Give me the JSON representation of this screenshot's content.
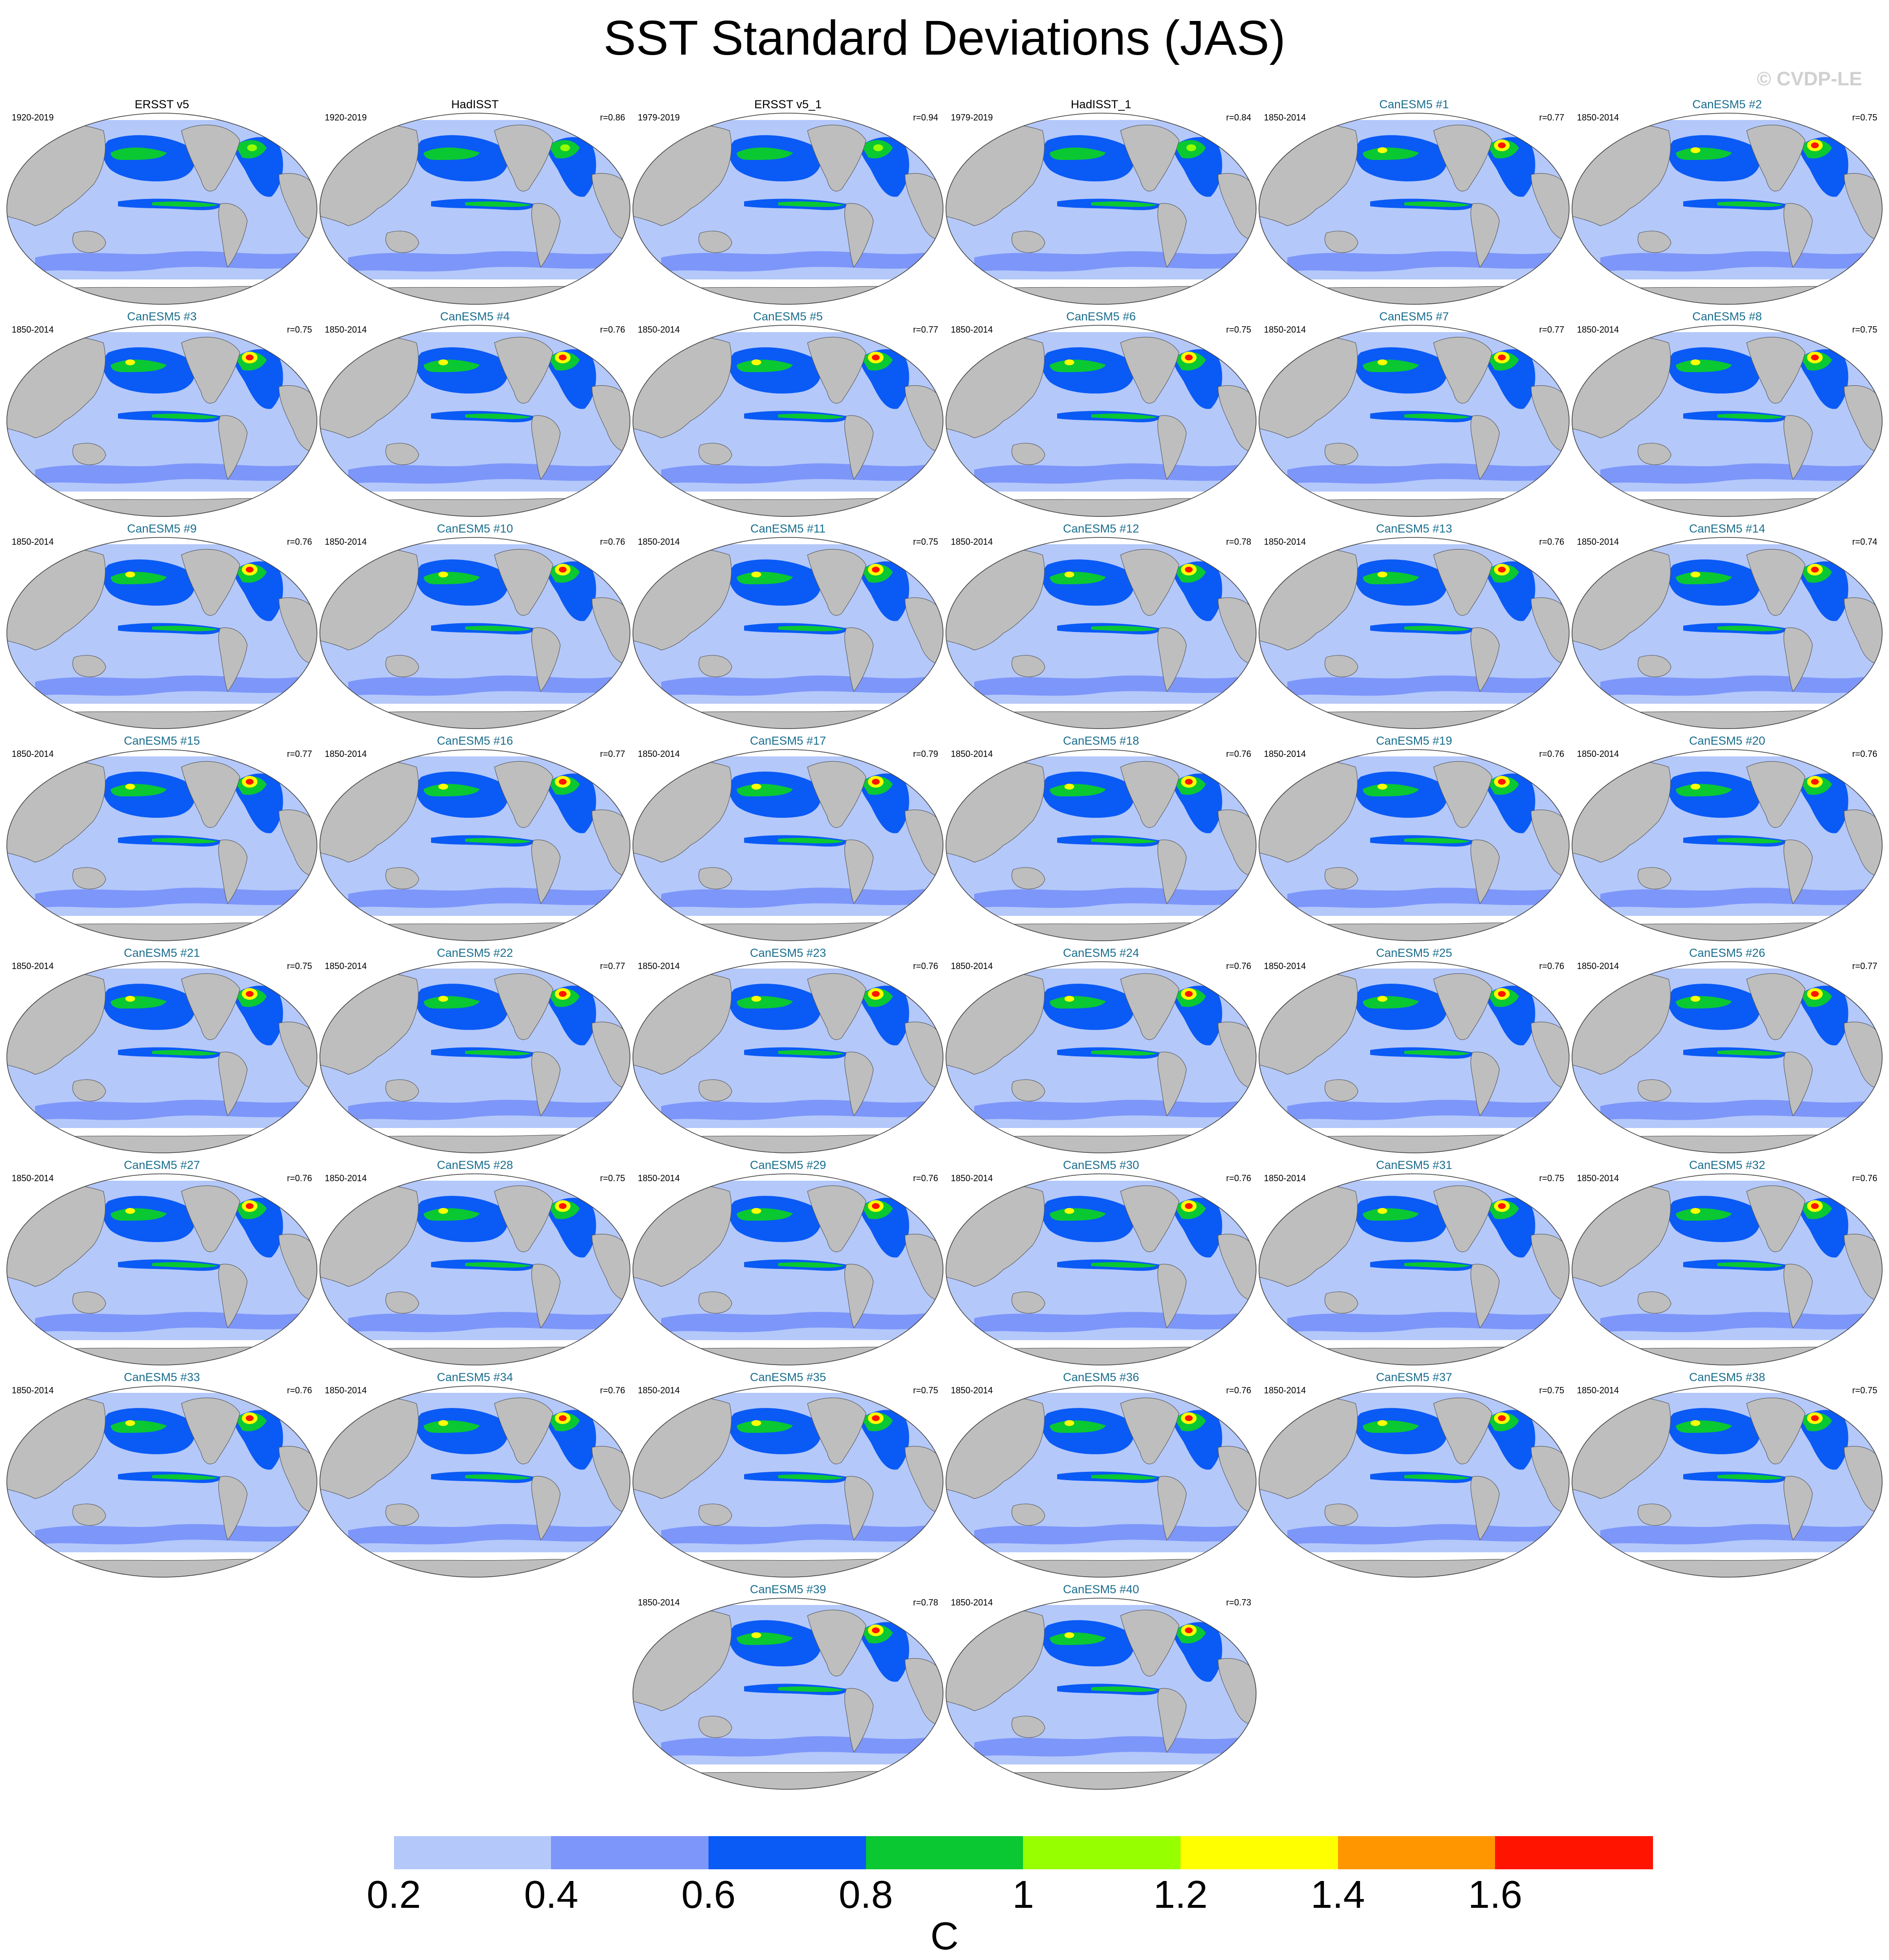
{
  "title": "SST Standard Deviations (JAS)",
  "copyright": "© CVDP-LE",
  "panels": [
    {
      "name": "ERSST v5",
      "years": "1920-2019",
      "corr": "",
      "kind": "obs"
    },
    {
      "name": "HadISST",
      "years": "1920-2019",
      "corr": "r=0.86",
      "kind": "obs"
    },
    {
      "name": "ERSST v5_1",
      "years": "1979-2019",
      "corr": "r=0.94",
      "kind": "obs"
    },
    {
      "name": "HadISST_1",
      "years": "1979-2019",
      "corr": "r=0.84",
      "kind": "obs"
    },
    {
      "name": "CanESM5 #1",
      "years": "1850-2014",
      "corr": "r=0.77",
      "kind": "model"
    },
    {
      "name": "CanESM5 #2",
      "years": "1850-2014",
      "corr": "r=0.75",
      "kind": "model"
    },
    {
      "name": "CanESM5 #3",
      "years": "1850-2014",
      "corr": "r=0.75",
      "kind": "model"
    },
    {
      "name": "CanESM5 #4",
      "years": "1850-2014",
      "corr": "r=0.76",
      "kind": "model"
    },
    {
      "name": "CanESM5 #5",
      "years": "1850-2014",
      "corr": "r=0.77",
      "kind": "model"
    },
    {
      "name": "CanESM5 #6",
      "years": "1850-2014",
      "corr": "r=0.75",
      "kind": "model"
    },
    {
      "name": "CanESM5 #7",
      "years": "1850-2014",
      "corr": "r=0.77",
      "kind": "model"
    },
    {
      "name": "CanESM5 #8",
      "years": "1850-2014",
      "corr": "r=0.75",
      "kind": "model"
    },
    {
      "name": "CanESM5 #9",
      "years": "1850-2014",
      "corr": "r=0.76",
      "kind": "model"
    },
    {
      "name": "CanESM5 #10",
      "years": "1850-2014",
      "corr": "r=0.76",
      "kind": "model"
    },
    {
      "name": "CanESM5 #11",
      "years": "1850-2014",
      "corr": "r=0.75",
      "kind": "model"
    },
    {
      "name": "CanESM5 #12",
      "years": "1850-2014",
      "corr": "r=0.78",
      "kind": "model"
    },
    {
      "name": "CanESM5 #13",
      "years": "1850-2014",
      "corr": "r=0.76",
      "kind": "model"
    },
    {
      "name": "CanESM5 #14",
      "years": "1850-2014",
      "corr": "r=0.74",
      "kind": "model"
    },
    {
      "name": "CanESM5 #15",
      "years": "1850-2014",
      "corr": "r=0.77",
      "kind": "model"
    },
    {
      "name": "CanESM5 #16",
      "years": "1850-2014",
      "corr": "r=0.77",
      "kind": "model"
    },
    {
      "name": "CanESM5 #17",
      "years": "1850-2014",
      "corr": "r=0.79",
      "kind": "model"
    },
    {
      "name": "CanESM5 #18",
      "years": "1850-2014",
      "corr": "r=0.76",
      "kind": "model"
    },
    {
      "name": "CanESM5 #19",
      "years": "1850-2014",
      "corr": "r=0.76",
      "kind": "model"
    },
    {
      "name": "CanESM5 #20",
      "years": "1850-2014",
      "corr": "r=0.76",
      "kind": "model"
    },
    {
      "name": "CanESM5 #21",
      "years": "1850-2014",
      "corr": "r=0.75",
      "kind": "model"
    },
    {
      "name": "CanESM5 #22",
      "years": "1850-2014",
      "corr": "r=0.77",
      "kind": "model"
    },
    {
      "name": "CanESM5 #23",
      "years": "1850-2014",
      "corr": "r=0.76",
      "kind": "model"
    },
    {
      "name": "CanESM5 #24",
      "years": "1850-2014",
      "corr": "r=0.76",
      "kind": "model"
    },
    {
      "name": "CanESM5 #25",
      "years": "1850-2014",
      "corr": "r=0.76",
      "kind": "model"
    },
    {
      "name": "CanESM5 #26",
      "years": "1850-2014",
      "corr": "r=0.77",
      "kind": "model"
    },
    {
      "name": "CanESM5 #27",
      "years": "1850-2014",
      "corr": "r=0.76",
      "kind": "model"
    },
    {
      "name": "CanESM5 #28",
      "years": "1850-2014",
      "corr": "r=0.75",
      "kind": "model"
    },
    {
      "name": "CanESM5 #29",
      "years": "1850-2014",
      "corr": "r=0.76",
      "kind": "model"
    },
    {
      "name": "CanESM5 #30",
      "years": "1850-2014",
      "corr": "r=0.76",
      "kind": "model"
    },
    {
      "name": "CanESM5 #31",
      "years": "1850-2014",
      "corr": "r=0.75",
      "kind": "model"
    },
    {
      "name": "CanESM5 #32",
      "years": "1850-2014",
      "corr": "r=0.76",
      "kind": "model"
    },
    {
      "name": "CanESM5 #33",
      "years": "1850-2014",
      "corr": "r=0.76",
      "kind": "model"
    },
    {
      "name": "CanESM5 #34",
      "years": "1850-2014",
      "corr": "r=0.76",
      "kind": "model"
    },
    {
      "name": "CanESM5 #35",
      "years": "1850-2014",
      "corr": "r=0.75",
      "kind": "model"
    },
    {
      "name": "CanESM5 #36",
      "years": "1850-2014",
      "corr": "r=0.76",
      "kind": "model"
    },
    {
      "name": "CanESM5 #37",
      "years": "1850-2014",
      "corr": "r=0.75",
      "kind": "model"
    },
    {
      "name": "CanESM5 #38",
      "years": "1850-2014",
      "corr": "r=0.75",
      "kind": "model"
    },
    {
      "name": "CanESM5 #39",
      "years": "1850-2014",
      "corr": "r=0.78",
      "kind": "model"
    },
    {
      "name": "CanESM5 #40",
      "years": "1850-2014",
      "corr": "r=0.73",
      "kind": "model"
    }
  ],
  "colorbar": {
    "colors": [
      "#ffffff",
      "#b4c8fa",
      "#7d96fa",
      "#0a5af5",
      "#0ac832",
      "#96ff00",
      "#ffff00",
      "#ff9600",
      "#ff1400"
    ],
    "tick_labels": [
      "0.2",
      "0.4",
      "0.6",
      "0.8",
      "1",
      "1.2",
      "1.4",
      "1.6"
    ],
    "units": "C"
  },
  "colors": {
    "land": "#bebebe",
    "ocean_base": "#b4c8fa",
    "model_title": "#1a6e8e"
  }
}
